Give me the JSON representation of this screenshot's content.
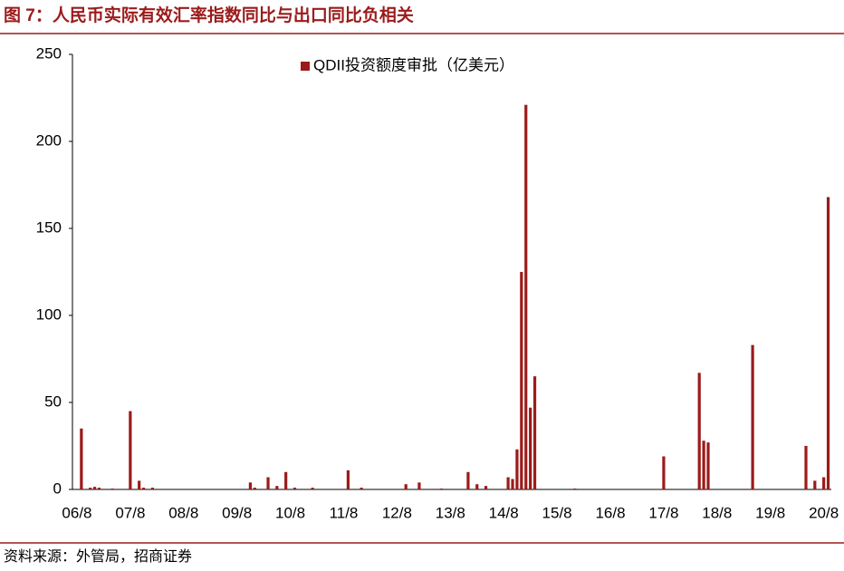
{
  "title": "图 7：人民币实际有效汇率指数同比与出口同比负相关",
  "source": "资料来源：外管局，招商证券",
  "chart_data": {
    "type": "bar",
    "categories": [
      "06/8",
      null,
      null,
      null,
      null,
      null,
      null,
      null,
      null,
      null,
      null,
      null,
      "07/8",
      null,
      null,
      null,
      null,
      null,
      null,
      null,
      null,
      null,
      null,
      null,
      "08/8",
      null,
      null,
      null,
      null,
      null,
      null,
      null,
      null,
      null,
      null,
      null,
      "09/8",
      null,
      null,
      null,
      null,
      null,
      null,
      null,
      null,
      null,
      null,
      null,
      "10/8",
      null,
      null,
      null,
      null,
      null,
      null,
      null,
      null,
      null,
      null,
      null,
      "11/8",
      null,
      null,
      null,
      null,
      null,
      null,
      null,
      null,
      null,
      null,
      null,
      "12/8",
      null,
      null,
      null,
      null,
      null,
      null,
      null,
      null,
      null,
      null,
      null,
      "13/8",
      null,
      null,
      null,
      null,
      null,
      null,
      null,
      null,
      null,
      null,
      null,
      "14/8",
      null,
      null,
      null,
      null,
      null,
      null,
      null,
      null,
      null,
      null,
      null,
      "15/8",
      null,
      null,
      null,
      null,
      null,
      null,
      null,
      null,
      null,
      null,
      null,
      "16/8",
      null,
      null,
      null,
      null,
      null,
      null,
      null,
      null,
      null,
      null,
      null,
      "17/8",
      null,
      null,
      null,
      null,
      null,
      null,
      null,
      null,
      null,
      null,
      null,
      "18/8",
      null,
      null,
      null,
      null,
      null,
      null,
      null,
      null,
      null,
      null,
      null,
      "19/8",
      null,
      null,
      null,
      null,
      null,
      null,
      null,
      null,
      null,
      null,
      null,
      "20/8",
      null
    ],
    "series": [
      {
        "name": "QDII投资额度审批（亿美元）",
        "color": "#9b1b1b",
        "values": [
          null,
          35,
          null,
          1,
          1.5,
          1,
          null,
          null,
          0.5,
          null,
          null,
          null,
          45,
          null,
          5,
          1,
          null,
          1,
          null,
          null,
          null,
          null,
          null,
          null,
          null,
          null,
          null,
          null,
          null,
          null,
          null,
          null,
          null,
          null,
          null,
          null,
          null,
          null,
          null,
          4,
          1,
          null,
          null,
          7,
          null,
          2,
          null,
          10,
          null,
          1,
          null,
          null,
          null,
          1,
          null,
          null,
          null,
          null,
          null,
          null,
          null,
          11,
          null,
          null,
          1,
          null,
          null,
          null,
          null,
          null,
          null,
          null,
          null,
          null,
          3,
          null,
          null,
          4,
          null,
          null,
          null,
          null,
          0.5,
          null,
          null,
          null,
          null,
          null,
          10,
          null,
          3,
          null,
          2,
          null,
          null,
          null,
          null,
          7,
          6,
          23,
          125,
          221,
          47,
          65,
          null,
          null,
          null,
          null,
          null,
          null,
          null,
          null,
          0.5,
          null,
          null,
          null,
          null,
          null,
          null,
          null,
          null,
          null,
          null,
          null,
          null,
          null,
          null,
          null,
          null,
          null,
          null,
          null,
          19,
          null,
          null,
          null,
          null,
          null,
          null,
          null,
          67,
          28,
          27,
          null,
          null,
          null,
          null,
          null,
          null,
          null,
          null,
          null,
          83,
          null,
          null,
          null,
          null,
          null,
          null,
          null,
          null,
          null,
          null,
          null,
          25,
          null,
          5,
          null,
          7,
          168
        ]
      }
    ],
    "ylim": [
      0,
      250
    ],
    "yticks": [
      0,
      50,
      100,
      150,
      200,
      250
    ],
    "legend": "top"
  }
}
